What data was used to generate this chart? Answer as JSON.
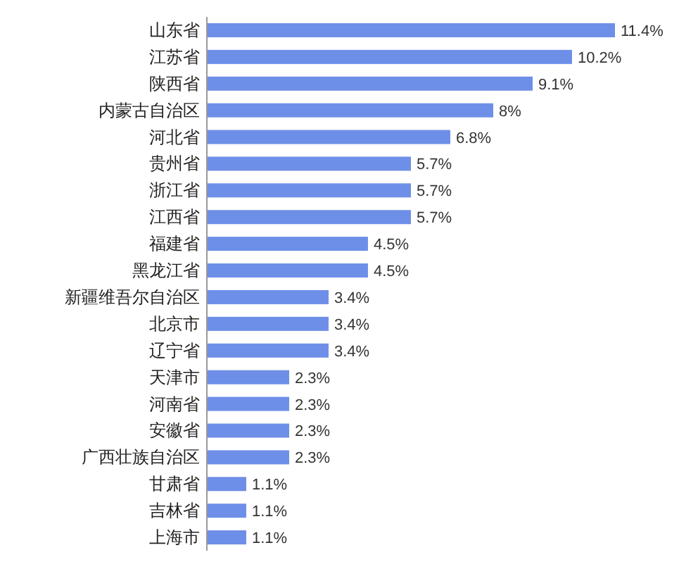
{
  "chart_data": {
    "type": "bar",
    "orientation": "horizontal",
    "categories": [
      "山东省",
      "江苏省",
      "陕西省",
      "内蒙古自治区",
      "河北省",
      "贵州省",
      "浙江省",
      "江西省",
      "福建省",
      "黑龙江省",
      "新疆维吾尔自治区",
      "北京市",
      "辽宁省",
      "天津市",
      "河南省",
      "安徽省",
      "广西壮族自治区",
      "甘肃省",
      "吉林省",
      "上海市"
    ],
    "values": [
      11.4,
      10.2,
      9.1,
      8,
      6.8,
      5.7,
      5.7,
      5.7,
      4.5,
      4.5,
      3.4,
      3.4,
      3.4,
      2.3,
      2.3,
      2.3,
      2.3,
      1.1,
      1.1,
      1.1
    ],
    "value_labels": [
      "11.4%",
      "10.2%",
      "9.1%",
      "8%",
      "6.8%",
      "5.7%",
      "5.7%",
      "5.7%",
      "4.5%",
      "4.5%",
      "3.4%",
      "3.4%",
      "3.4%",
      "2.3%",
      "2.3%",
      "2.3%",
      "2.3%",
      "1.1%",
      "1.1%",
      "1.1%"
    ],
    "color": "#6e8fe8"
  }
}
